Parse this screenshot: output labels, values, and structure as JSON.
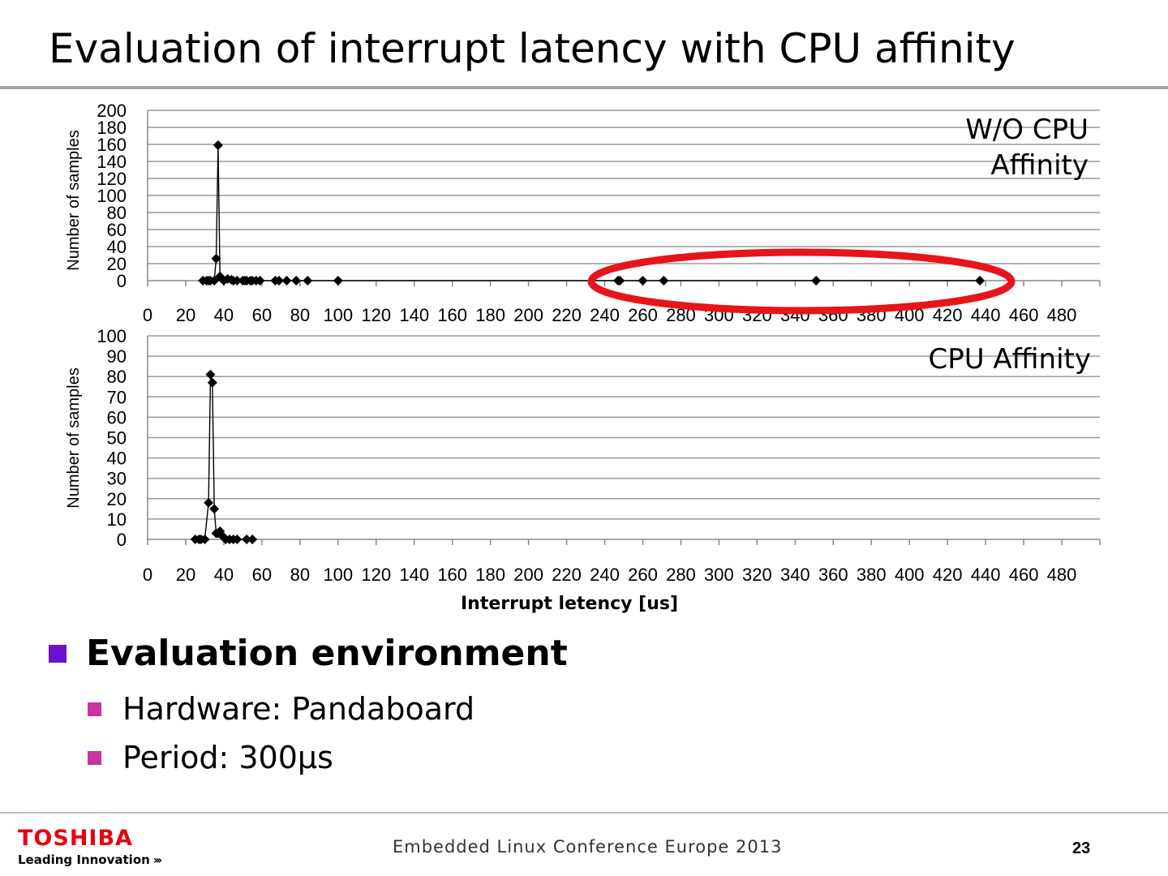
{
  "slide": {
    "title": "Evaluation of interrupt latency with CPU affinity",
    "page_number": "23",
    "footer_text": "Embedded Linux Conference Europe 2013",
    "logo": {
      "brand": "TOSHIBA",
      "tagline": "Leading Innovation",
      "tagline_arrows": "›››",
      "brand_color": "#e60012"
    }
  },
  "bullets": {
    "heading": "Evaluation environment",
    "items": [
      {
        "label": "Hardware: Pandaboard"
      },
      {
        "label": "Period: 300μs"
      }
    ]
  },
  "x_axis_label": "Interrupt letency [us]",
  "chart_data": [
    {
      "type": "scatter",
      "annotation": [
        "W/O CPU",
        "Affinity"
      ],
      "highlight_color": "#e8141b",
      "highlight_region": {
        "x": [
          240,
          440
        ],
        "y": [
          0,
          0
        ]
      },
      "ylabel": "Number of samples",
      "xlabel": "",
      "xlim": [
        0,
        500
      ],
      "ylim": [
        0,
        200
      ],
      "x_ticks": [
        0,
        20,
        40,
        60,
        80,
        100,
        120,
        140,
        160,
        180,
        200,
        220,
        240,
        260,
        280,
        300,
        320,
        340,
        360,
        380,
        400,
        420,
        440,
        460,
        480
      ],
      "y_ticks": [
        0,
        20,
        40,
        60,
        80,
        100,
        120,
        140,
        160,
        180,
        200
      ],
      "grid": true,
      "marker": "diamond",
      "line_color": "#000000",
      "points": [
        [
          29,
          0
        ],
        [
          31,
          0
        ],
        [
          32,
          0
        ],
        [
          33,
          0
        ],
        [
          35,
          0
        ],
        [
          36,
          26
        ],
        [
          37,
          159
        ],
        [
          38,
          5
        ],
        [
          39,
          2
        ],
        [
          40,
          0
        ],
        [
          42,
          2
        ],
        [
          44,
          1
        ],
        [
          45,
          0
        ],
        [
          47,
          0
        ],
        [
          50,
          0
        ],
        [
          51,
          0
        ],
        [
          52,
          0
        ],
        [
          54,
          0
        ],
        [
          55,
          0
        ],
        [
          57,
          0
        ],
        [
          59,
          0
        ],
        [
          67,
          0
        ],
        [
          69,
          0
        ],
        [
          73,
          0
        ],
        [
          78,
          0
        ],
        [
          84,
          0
        ],
        [
          100,
          0
        ],
        [
          247,
          0
        ],
        [
          248,
          0
        ],
        [
          260,
          0
        ],
        [
          271,
          0
        ],
        [
          351,
          0
        ],
        [
          437,
          0
        ]
      ]
    },
    {
      "type": "scatter",
      "annotation": [
        "CPU Affinity"
      ],
      "ylabel": "Number of samples",
      "xlabel": "Interrupt letency [us]",
      "xlim": [
        0,
        500
      ],
      "ylim": [
        0,
        100
      ],
      "x_ticks": [
        0,
        20,
        40,
        60,
        80,
        100,
        120,
        140,
        160,
        180,
        200,
        220,
        240,
        260,
        280,
        300,
        320,
        340,
        360,
        380,
        400,
        420,
        440,
        460,
        480
      ],
      "y_ticks": [
        0,
        10,
        20,
        30,
        40,
        50,
        60,
        70,
        80,
        90,
        100
      ],
      "grid": true,
      "marker": "diamond",
      "line_color": "#000000",
      "points": [
        [
          25,
          0
        ],
        [
          27,
          0
        ],
        [
          28,
          0
        ],
        [
          30,
          0
        ],
        [
          32,
          18
        ],
        [
          33,
          81
        ],
        [
          34,
          77
        ],
        [
          35,
          15
        ],
        [
          36,
          3
        ],
        [
          37,
          3
        ],
        [
          38,
          4
        ],
        [
          39,
          2
        ],
        [
          40,
          1
        ],
        [
          41,
          0
        ],
        [
          43,
          0
        ],
        [
          45,
          0
        ],
        [
          47,
          0
        ],
        [
          52,
          0
        ],
        [
          55,
          0
        ]
      ]
    }
  ]
}
